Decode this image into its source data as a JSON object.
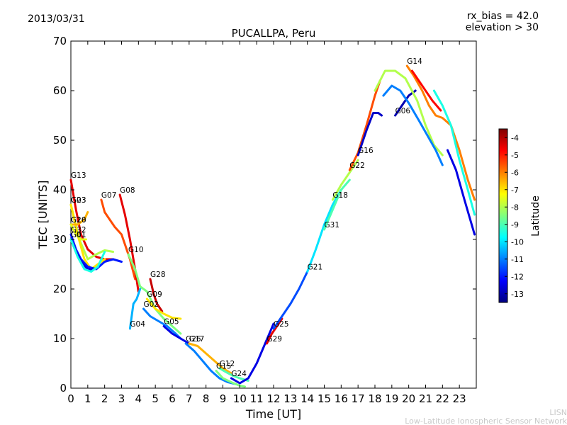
{
  "header": {
    "date": "2013/03/31",
    "rx_bias": "rx_bias = 42.0",
    "elevation": "elevation > 30"
  },
  "footer": {
    "line1": "LISN",
    "line2": "Low-Latitude Ionospheric Sensor Network"
  },
  "chart_data": {
    "type": "scatter",
    "title": "PUCALLPA, Peru",
    "xlabel": "Time [UT]",
    "ylabel": "TEC [UNITS]",
    "xlim": [
      0,
      24
    ],
    "ylim": [
      0,
      70
    ],
    "xticks": [
      "0",
      "1",
      "2",
      "3",
      "4",
      "5",
      "6",
      "7",
      "8",
      "9",
      "10",
      "11",
      "12",
      "13",
      "14",
      "15",
      "16",
      "17",
      "18",
      "19",
      "20",
      "21",
      "22",
      "23"
    ],
    "yticks": [
      "0",
      "10",
      "20",
      "30",
      "40",
      "50",
      "60",
      "70"
    ],
    "grid": false,
    "colorbar": {
      "label": "Latitude",
      "range": [
        -13.5,
        -3.5
      ],
      "ticks": [
        "-4",
        "-5",
        "-6",
        "-7",
        "-8",
        "-9",
        "-10",
        "-11",
        "-12",
        "-13"
      ],
      "colormap": [
        "#00007f",
        "#0000ff",
        "#007fff",
        "#00ffff",
        "#7fff7f",
        "#ffff00",
        "#ff7f00",
        "#ff0000",
        "#7f0000"
      ]
    },
    "tracks": [
      {
        "label": "G13",
        "lat": -4.5,
        "points": [
          [
            0.0,
            42
          ],
          [
            0.3,
            36
          ],
          [
            0.6,
            31
          ],
          [
            1.0,
            28
          ],
          [
            1.5,
            26.5
          ],
          [
            2.0,
            26
          ],
          [
            2.5,
            26
          ]
        ]
      },
      {
        "label": "G23",
        "lat": -8.0,
        "points": [
          [
            0.0,
            37
          ],
          [
            0.5,
            30
          ],
          [
            1.0,
            26
          ],
          [
            1.5,
            27
          ],
          [
            2.0,
            27.8
          ],
          [
            2.5,
            27.5
          ]
        ]
      },
      {
        "label": "G03",
        "lat": -7.0,
        "points": [
          [
            0.0,
            37
          ],
          [
            0.4,
            31
          ],
          [
            0.8,
            26
          ],
          [
            1.2,
            24
          ],
          [
            1.6,
            25
          ],
          [
            2.0,
            26
          ]
        ]
      },
      {
        "label": "G20",
        "lat": -6.5,
        "points": [
          [
            0.0,
            33
          ],
          [
            0.4,
            33
          ],
          [
            0.8,
            34
          ],
          [
            1.0,
            35.5
          ]
        ]
      },
      {
        "label": "G16",
        "lat": -7.5,
        "points": [
          [
            0.0,
            33
          ],
          [
            0.3,
            31
          ],
          [
            0.6,
            30
          ],
          [
            0.9,
            30
          ]
        ]
      },
      {
        "label": "G32",
        "lat": -12.0,
        "points": [
          [
            0.0,
            31
          ],
          [
            0.3,
            28
          ],
          [
            0.6,
            26
          ],
          [
            1.0,
            24.5
          ],
          [
            1.5,
            24
          ],
          [
            2.0,
            25.5
          ],
          [
            2.5,
            26
          ],
          [
            3.0,
            25.5
          ]
        ]
      },
      {
        "label": "G01",
        "lat": -12.5,
        "points": [
          [
            0.0,
            30
          ],
          [
            0.3,
            27.5
          ],
          [
            0.6,
            25.5
          ],
          [
            1.0,
            24
          ],
          [
            1.3,
            24
          ]
        ]
      },
      {
        "label": "G11",
        "lat": -9.5,
        "points": [
          [
            0.0,
            30
          ],
          [
            0.4,
            26.5
          ],
          [
            0.8,
            24
          ],
          [
            1.2,
            23.5
          ],
          [
            1.6,
            24.5
          ],
          [
            2.0,
            27.5
          ]
        ]
      },
      {
        "label": "G07",
        "lat": -5.5,
        "points": [
          [
            1.8,
            38
          ],
          [
            2.0,
            35.5
          ],
          [
            2.3,
            34
          ],
          [
            2.6,
            32.5
          ],
          [
            3.0,
            31
          ],
          [
            3.2,
            29
          ],
          [
            3.5,
            26
          ],
          [
            3.8,
            22
          ]
        ]
      },
      {
        "label": "G08",
        "lat": -4.5,
        "points": [
          [
            2.9,
            39
          ],
          [
            3.2,
            35
          ],
          [
            3.5,
            30
          ],
          [
            3.8,
            24
          ],
          [
            4.0,
            19.5
          ]
        ]
      },
      {
        "label": "G28",
        "lat": -4.2,
        "points": [
          [
            4.7,
            22
          ],
          [
            4.9,
            19
          ],
          [
            5.1,
            17
          ],
          [
            5.4,
            15.5
          ]
        ]
      },
      {
        "label": "G10",
        "lat": -8.5,
        "points": [
          [
            3.4,
            27
          ],
          [
            3.8,
            24
          ],
          [
            4.1,
            20.5
          ],
          [
            4.5,
            19.5
          ],
          [
            5.0,
            16
          ],
          [
            5.5,
            14
          ],
          [
            6.0,
            12.5
          ],
          [
            6.5,
            11
          ]
        ]
      },
      {
        "label": "G04",
        "lat": -10.5,
        "points": [
          [
            3.5,
            12
          ],
          [
            3.7,
            17
          ],
          [
            3.9,
            18
          ],
          [
            4.1,
            20
          ]
        ]
      },
      {
        "label": "G02",
        "lat": -11.0,
        "points": [
          [
            4.3,
            16
          ],
          [
            4.7,
            14.5
          ],
          [
            5.2,
            13.5
          ],
          [
            5.7,
            12.5
          ],
          [
            6.2,
            11
          ],
          [
            6.5,
            10
          ]
        ]
      },
      {
        "label": "G09",
        "lat": -7.0,
        "points": [
          [
            4.5,
            18
          ],
          [
            5.0,
            16
          ],
          [
            5.5,
            15
          ],
          [
            6.0,
            14.2
          ],
          [
            6.5,
            14
          ]
        ]
      },
      {
        "label": "G05",
        "lat": -12.5,
        "points": [
          [
            5.5,
            12.5
          ],
          [
            6.0,
            11
          ],
          [
            6.5,
            10
          ],
          [
            7.0,
            9
          ]
        ]
      },
      {
        "label": "G17",
        "lat": -6.5,
        "points": [
          [
            7.0,
            9
          ],
          [
            7.5,
            8.5
          ],
          [
            8.0,
            7
          ],
          [
            8.5,
            5.5
          ],
          [
            9.0,
            4
          ],
          [
            9.5,
            3
          ]
        ]
      },
      {
        "label": "G26",
        "lat": -11.0,
        "points": [
          [
            6.8,
            9
          ],
          [
            7.3,
            7.5
          ],
          [
            7.8,
            5.5
          ],
          [
            8.3,
            3.5
          ],
          [
            8.8,
            2
          ],
          [
            9.3,
            1.2
          ],
          [
            9.8,
            0.8
          ]
        ]
      },
      {
        "label": "G12",
        "lat": -9.0,
        "points": [
          [
            8.8,
            4
          ],
          [
            9.2,
            3.2
          ],
          [
            9.6,
            2.5
          ],
          [
            10.0,
            2
          ],
          [
            10.5,
            1.5
          ]
        ]
      },
      {
        "label": "G15",
        "lat": -8.5,
        "points": [
          [
            8.6,
            3.5
          ],
          [
            9.0,
            2
          ],
          [
            9.5,
            1.2
          ],
          [
            10.0,
            0.5
          ],
          [
            10.3,
            0.3
          ]
        ]
      },
      {
        "label": "G24",
        "lat": -12.5,
        "points": [
          [
            9.5,
            2
          ],
          [
            10.0,
            1
          ],
          [
            10.5,
            2
          ],
          [
            11.0,
            5
          ],
          [
            11.5,
            9
          ],
          [
            12.0,
            13
          ]
        ]
      },
      {
        "label": "G29",
        "lat": -4.5,
        "points": [
          [
            11.6,
            9
          ],
          [
            11.9,
            11
          ],
          [
            12.2,
            12.5
          ],
          [
            12.5,
            14
          ]
        ]
      },
      {
        "label": "G25",
        "lat": -11.5,
        "points": [
          [
            12.0,
            12
          ],
          [
            12.5,
            14.5
          ],
          [
            13.0,
            17
          ],
          [
            13.5,
            20
          ],
          [
            14.0,
            23.5
          ]
        ]
      },
      {
        "label": "G21",
        "lat": -10.0,
        "points": [
          [
            14.0,
            23.5
          ],
          [
            14.5,
            28
          ],
          [
            15.0,
            33
          ],
          [
            15.5,
            37
          ],
          [
            16.0,
            40
          ]
        ]
      },
      {
        "label": "G31",
        "lat": -9.0,
        "points": [
          [
            15.0,
            32
          ],
          [
            15.5,
            36
          ],
          [
            16.0,
            40
          ],
          [
            16.5,
            42
          ]
        ]
      },
      {
        "label": "G18",
        "lat": -8.0,
        "points": [
          [
            15.5,
            38
          ],
          [
            16.0,
            41
          ],
          [
            16.5,
            43.5
          ],
          [
            17.0,
            46
          ]
        ]
      },
      {
        "label": "G22",
        "lat": -5.5,
        "points": [
          [
            16.5,
            44
          ],
          [
            17.0,
            47.5
          ],
          [
            17.5,
            53
          ],
          [
            18.0,
            59
          ],
          [
            18.3,
            62
          ]
        ]
      },
      {
        "label": "G16",
        "lat": -12.8,
        "points": [
          [
            17.0,
            47
          ],
          [
            17.5,
            52
          ],
          [
            17.9,
            55.5
          ],
          [
            18.2,
            55.5
          ],
          [
            18.4,
            55
          ]
        ]
      },
      {
        "label": "G06",
        "lat": -13.0,
        "points": [
          [
            19.2,
            55
          ],
          [
            19.6,
            57
          ],
          [
            20.0,
            59
          ],
          [
            20.4,
            60
          ]
        ]
      },
      {
        "label": "G14",
        "lat": -6.0,
        "points": [
          [
            19.9,
            65
          ],
          [
            20.3,
            63
          ],
          [
            20.8,
            60
          ],
          [
            21.2,
            57
          ],
          [
            21.6,
            55
          ],
          [
            22.0,
            54.5
          ],
          [
            22.5,
            53
          ],
          [
            23.0,
            48
          ],
          [
            23.5,
            42
          ],
          [
            23.9,
            38
          ]
        ]
      },
      {
        "label": "",
        "lat": -8.0,
        "points": [
          [
            18.0,
            60
          ],
          [
            18.6,
            64
          ],
          [
            19.2,
            64
          ],
          [
            19.8,
            62.5
          ],
          [
            20.5,
            58
          ],
          [
            21.0,
            53
          ],
          [
            21.5,
            49
          ],
          [
            22.0,
            47
          ]
        ]
      },
      {
        "label": "",
        "lat": -11.0,
        "points": [
          [
            18.5,
            59
          ],
          [
            19.0,
            61
          ],
          [
            19.5,
            60
          ],
          [
            20.0,
            57.5
          ],
          [
            20.6,
            54
          ],
          [
            21.1,
            51
          ],
          [
            21.6,
            48
          ],
          [
            22.0,
            45
          ]
        ]
      },
      {
        "label": "",
        "lat": -4.8,
        "points": [
          [
            20.2,
            64
          ],
          [
            20.8,
            61
          ],
          [
            21.4,
            58
          ],
          [
            21.9,
            56
          ]
        ]
      },
      {
        "label": "",
        "lat": -12.5,
        "points": [
          [
            22.3,
            48
          ],
          [
            22.8,
            44
          ],
          [
            23.3,
            38
          ],
          [
            23.9,
            31
          ]
        ]
      },
      {
        "label": "",
        "lat": -9.5,
        "points": [
          [
            21.5,
            60
          ],
          [
            22.0,
            57
          ],
          [
            22.5,
            53
          ],
          [
            23.0,
            46
          ],
          [
            23.5,
            40
          ],
          [
            23.9,
            35
          ]
        ]
      }
    ]
  }
}
